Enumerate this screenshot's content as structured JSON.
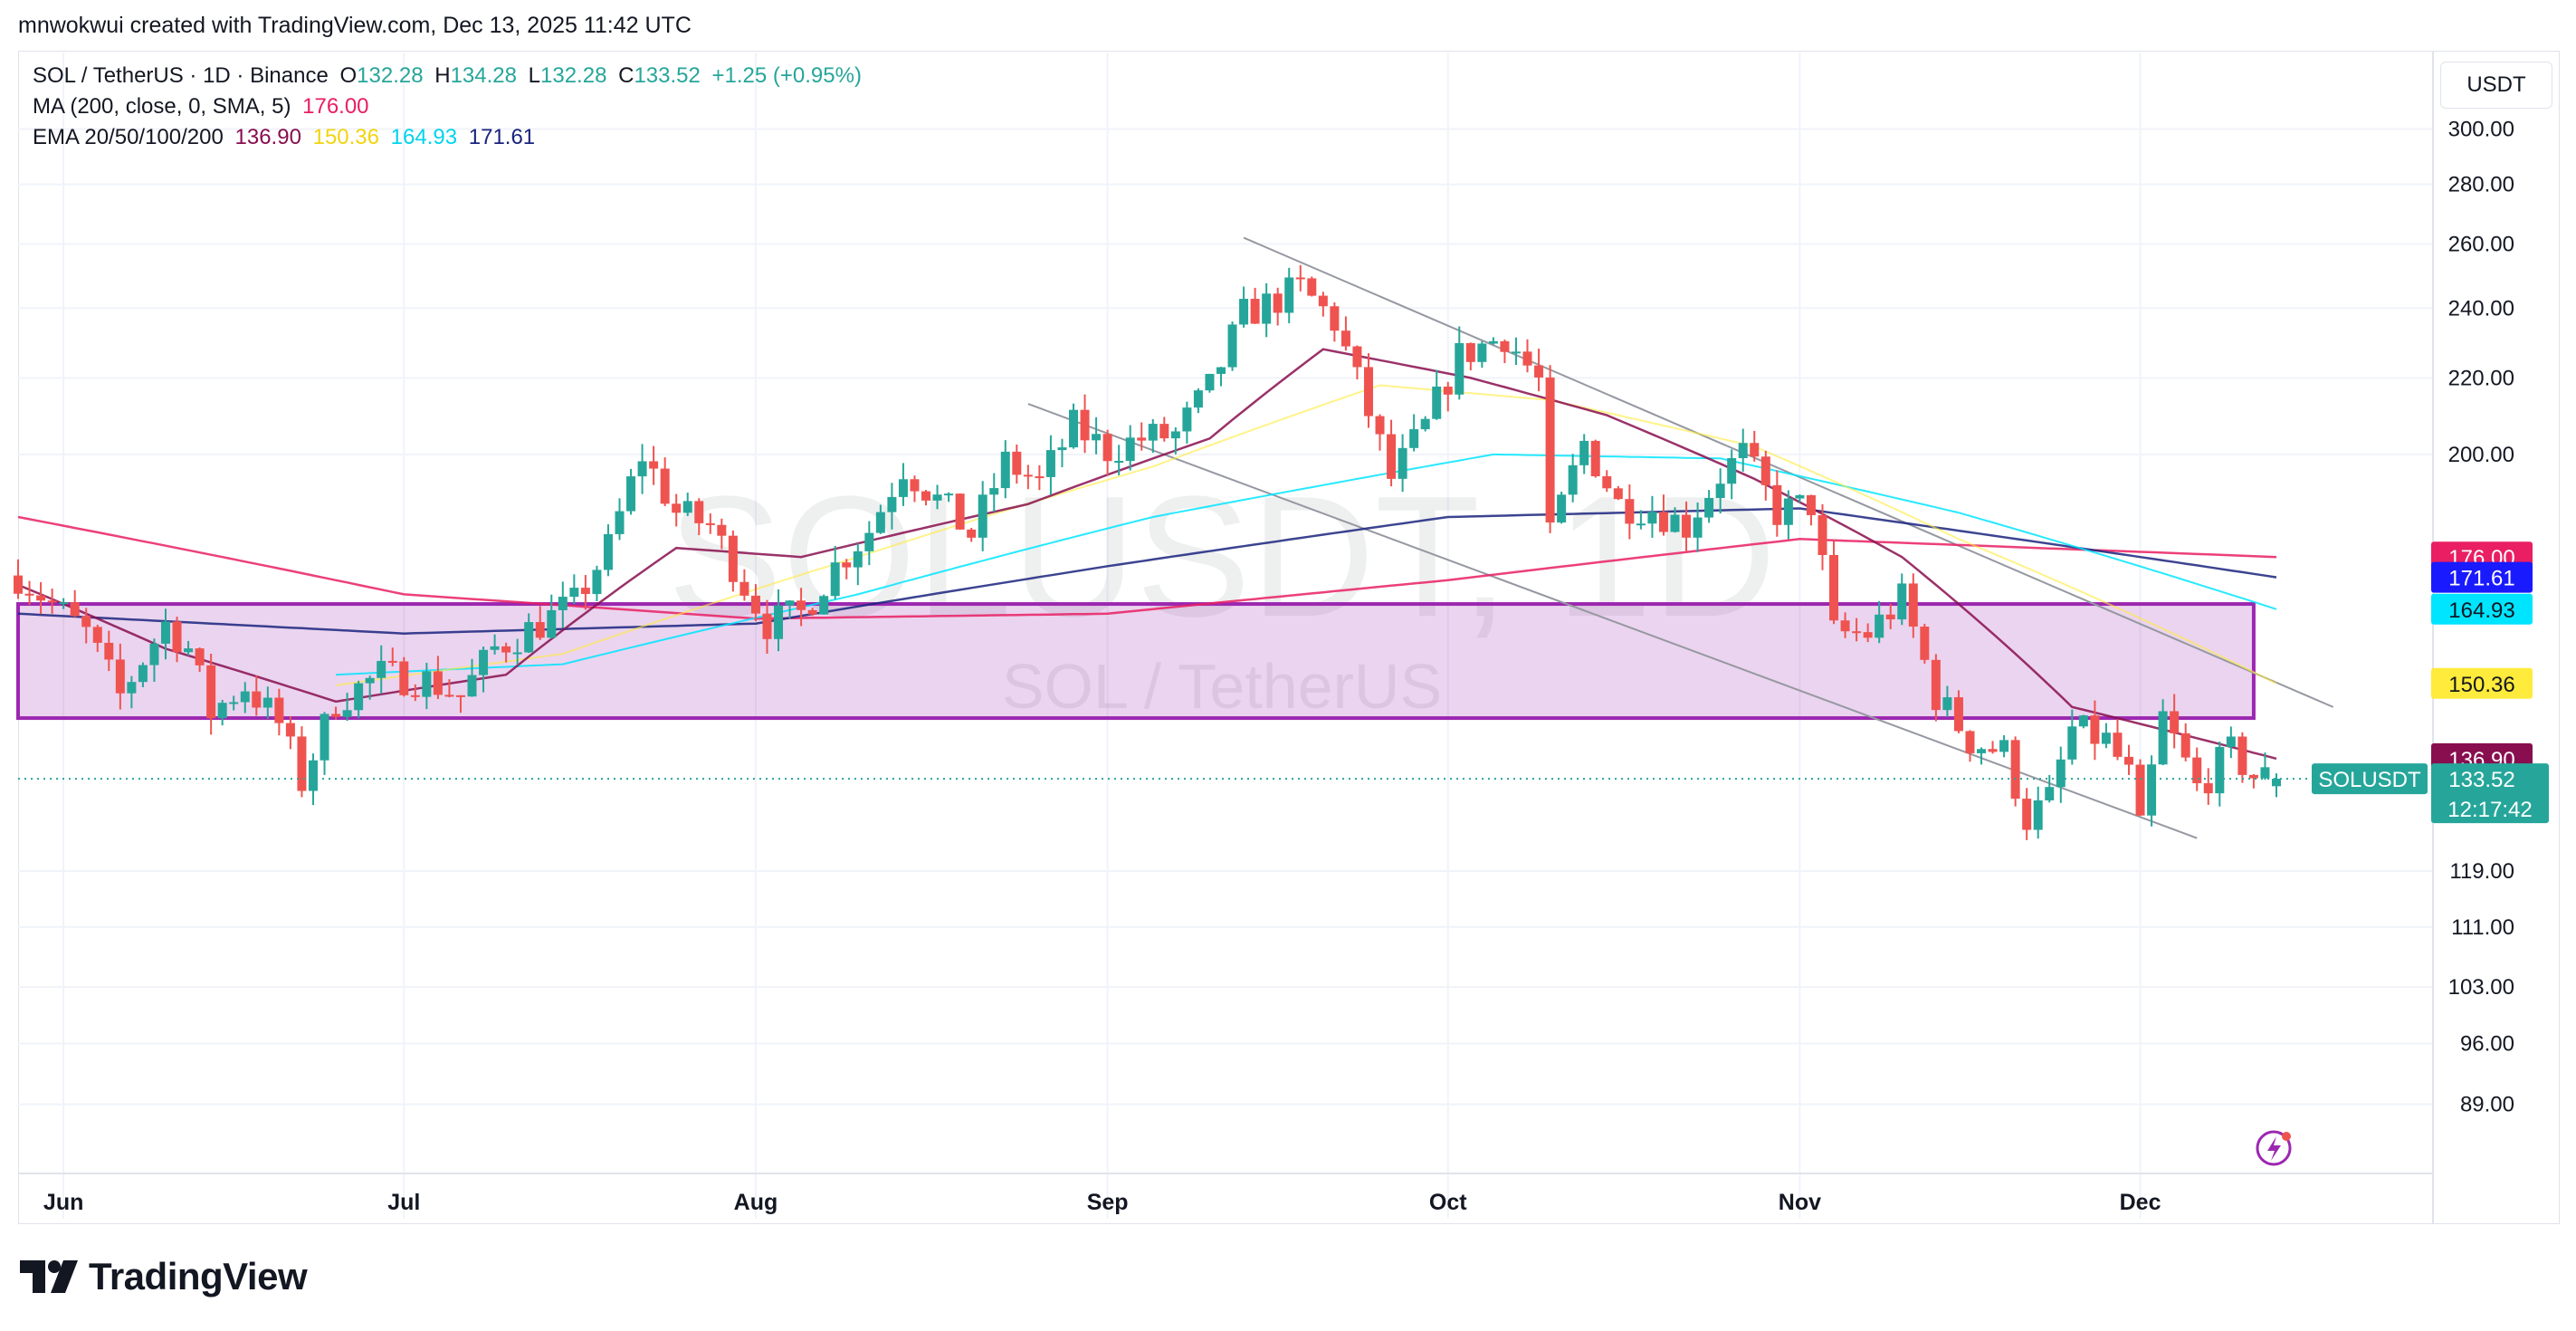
{
  "header": {
    "attribution": "mnwokwui created with TradingView.com, Dec 13, 2025 11:42 UTC",
    "currency_button": "USDT"
  },
  "legend": {
    "symbol": "SOL / TetherUS · 1D · Binance",
    "o_label": "O",
    "o_value": "132.28",
    "h_label": "H",
    "h_value": "134.28",
    "l_label": "L",
    "l_value": "132.28",
    "c_label": "C",
    "c_value": "133.52",
    "change": "+1.25 (+0.95%)",
    "ma_label": "MA (200, close, 0, SMA, 5)",
    "ma_value": "176.00",
    "ema_label": "EMA 20/50/100/200",
    "ema20_value": "136.90",
    "ema50_value": "150.36",
    "ema100_value": "164.93",
    "ema200_value": "171.61"
  },
  "watermark": {
    "ticker": "SOLUSDT, 1D",
    "name": "SOL / TetherUS"
  },
  "brand": {
    "name": "TradingView"
  },
  "colors": {
    "up": "#26a69a",
    "down": "#ef5350",
    "ma200": "#e91e63",
    "ema20": "#880e4f",
    "ema50": "#ffeb3b",
    "ema100": "#00e5ff",
    "ema200": "#1a237e",
    "zone": "#9c27b0"
  },
  "chart_data": {
    "type": "candlestick",
    "symbol": "SOLUSDT",
    "scale": "log",
    "ylim": [
      86,
      330
    ],
    "yticks": [
      "300.00",
      "280.00",
      "260.00",
      "240.00",
      "220.00",
      "200.00",
      "119.00",
      "111.00",
      "103.00",
      "96.00",
      "89.00"
    ],
    "xticks": [
      {
        "label": "Jun",
        "date": "2025-06-01"
      },
      {
        "label": "Jul",
        "date": "2025-07-01"
      },
      {
        "label": "Aug",
        "date": "2025-08-01"
      },
      {
        "label": "Sep",
        "date": "2025-09-01"
      },
      {
        "label": "Oct",
        "date": "2025-10-01"
      },
      {
        "label": "Nov",
        "date": "2025-11-01"
      },
      {
        "label": "Dec",
        "date": "2025-12-01"
      }
    ],
    "date_range": [
      "2025-05-28",
      "2025-12-13"
    ],
    "price_path": [
      [
        "2025-05-28",
        172
      ],
      [
        "2025-06-03",
        160
      ],
      [
        "2025-06-06",
        148
      ],
      [
        "2025-06-10",
        162
      ],
      [
        "2025-06-12",
        157
      ],
      [
        "2025-06-14",
        145
      ],
      [
        "2025-06-17",
        150
      ],
      [
        "2025-06-20",
        143
      ],
      [
        "2025-06-22",
        133
      ],
      [
        "2025-06-25",
        147
      ],
      [
        "2025-06-29",
        152
      ],
      [
        "2025-07-03",
        151
      ],
      [
        "2025-07-06",
        148
      ],
      [
        "2025-07-09",
        157
      ],
      [
        "2025-07-13",
        162
      ],
      [
        "2025-07-16",
        166
      ],
      [
        "2025-07-19",
        178
      ],
      [
        "2025-07-22",
        200
      ],
      [
        "2025-07-25",
        186
      ],
      [
        "2025-07-28",
        183
      ],
      [
        "2025-07-31",
        170
      ],
      [
        "2025-08-02",
        162
      ],
      [
        "2025-08-05",
        164
      ],
      [
        "2025-08-08",
        174
      ],
      [
        "2025-08-11",
        182
      ],
      [
        "2025-08-14",
        197
      ],
      [
        "2025-08-17",
        189
      ],
      [
        "2025-08-20",
        181
      ],
      [
        "2025-08-23",
        198
      ],
      [
        "2025-08-26",
        193
      ],
      [
        "2025-08-29",
        207
      ],
      [
        "2025-09-01",
        201
      ],
      [
        "2025-09-04",
        204
      ],
      [
        "2025-09-07",
        205
      ],
      [
        "2025-09-10",
        217
      ],
      [
        "2025-09-13",
        238
      ],
      [
        "2025-09-15",
        241
      ],
      [
        "2025-09-18",
        246
      ],
      [
        "2025-09-21",
        236
      ],
      [
        "2025-09-23",
        219
      ],
      [
        "2025-09-26",
        194
      ],
      [
        "2025-09-29",
        207
      ],
      [
        "2025-10-02",
        226
      ],
      [
        "2025-10-06",
        232
      ],
      [
        "2025-10-09",
        219
      ],
      [
        "2025-10-10",
        180
      ],
      [
        "2025-10-13",
        203
      ],
      [
        "2025-10-16",
        188
      ],
      [
        "2025-10-19",
        187
      ],
      [
        "2025-10-22",
        183
      ],
      [
        "2025-10-25",
        195
      ],
      [
        "2025-10-27",
        200
      ],
      [
        "2025-10-30",
        186
      ],
      [
        "2025-11-02",
        188
      ],
      [
        "2025-11-04",
        160
      ],
      [
        "2025-11-07",
        160
      ],
      [
        "2025-11-10",
        167
      ],
      [
        "2025-11-13",
        148
      ],
      [
        "2025-11-16",
        140
      ],
      [
        "2025-11-19",
        138
      ],
      [
        "2025-11-21",
        127
      ],
      [
        "2025-11-23",
        130
      ],
      [
        "2025-11-25",
        142
      ],
      [
        "2025-11-28",
        140
      ],
      [
        "2025-11-30",
        134
      ],
      [
        "2025-12-01",
        125
      ],
      [
        "2025-12-03",
        144
      ],
      [
        "2025-12-06",
        132
      ],
      [
        "2025-12-09",
        138
      ],
      [
        "2025-12-11",
        134
      ],
      [
        "2025-12-13",
        133.52
      ]
    ],
    "lines": {
      "ma200": [
        [
          "2025-05-28",
          185
        ],
        [
          "2025-07-01",
          168
        ],
        [
          "2025-08-01",
          163
        ],
        [
          "2025-09-01",
          164
        ],
        [
          "2025-10-01",
          171
        ],
        [
          "2025-11-01",
          180
        ],
        [
          "2025-12-13",
          176
        ]
      ],
      "ema200": [
        [
          "2025-05-28",
          164
        ],
        [
          "2025-07-01",
          160
        ],
        [
          "2025-08-01",
          162
        ],
        [
          "2025-09-01",
          174
        ],
        [
          "2025-10-01",
          185
        ],
        [
          "2025-11-01",
          187
        ],
        [
          "2025-12-13",
          171.61
        ]
      ],
      "ema100": [
        [
          "2025-06-25",
          152
        ],
        [
          "2025-07-15",
          154
        ],
        [
          "2025-08-10",
          168
        ],
        [
          "2025-09-05",
          185
        ],
        [
          "2025-10-05",
          200
        ],
        [
          "2025-10-25",
          199
        ],
        [
          "2025-11-15",
          186
        ],
        [
          "2025-12-13",
          164.93
        ]
      ],
      "ema50": [
        [
          "2025-06-25",
          150
        ],
        [
          "2025-07-15",
          156
        ],
        [
          "2025-08-10",
          176
        ],
        [
          "2025-09-05",
          197
        ],
        [
          "2025-09-25",
          218
        ],
        [
          "2025-10-10",
          214
        ],
        [
          "2025-10-28",
          202
        ],
        [
          "2025-11-15",
          180
        ],
        [
          "2025-12-13",
          150.36
        ]
      ],
      "ema20": [
        [
          "2025-05-28",
          170
        ],
        [
          "2025-06-10",
          157
        ],
        [
          "2025-06-25",
          147
        ],
        [
          "2025-07-10",
          152
        ],
        [
          "2025-07-25",
          178
        ],
        [
          "2025-08-05",
          176
        ],
        [
          "2025-08-25",
          188
        ],
        [
          "2025-09-10",
          204
        ],
        [
          "2025-09-20",
          228
        ],
        [
          "2025-10-03",
          220
        ],
        [
          "2025-10-15",
          210
        ],
        [
          "2025-10-28",
          194
        ],
        [
          "2025-11-10",
          176
        ],
        [
          "2025-11-25",
          146
        ],
        [
          "2025-12-13",
          136.9
        ]
      ]
    },
    "zone": {
      "from": "2025-05-28",
      "to": "2025-12-11",
      "low": 144,
      "high": 166
    },
    "channel": {
      "upper": [
        [
          "2025-09-13",
          262
        ],
        [
          "2025-12-18",
          146
        ]
      ],
      "lower": [
        [
          "2025-08-25",
          213
        ],
        [
          "2025-12-06",
          124
        ]
      ]
    },
    "price_labels": [
      {
        "text": "176.00",
        "value": 176.0,
        "color": "#e91e63",
        "text_color": "#ffffff"
      },
      {
        "text": "171.61",
        "value": 171.61,
        "color": "#1a1aff",
        "text_color": "#ffffff"
      },
      {
        "text": "164.93",
        "value": 164.93,
        "color": "#00e5ff",
        "text_color": "#131722"
      },
      {
        "text": "150.36",
        "value": 150.36,
        "color": "#ffeb3b",
        "text_color": "#131722"
      },
      {
        "text": "136.90",
        "value": 136.9,
        "color": "#880e4f",
        "text_color": "#ffffff"
      }
    ],
    "last_price": {
      "symbol": "SOLUSDT",
      "value": "133.52",
      "countdown": "12:17:42"
    }
  }
}
